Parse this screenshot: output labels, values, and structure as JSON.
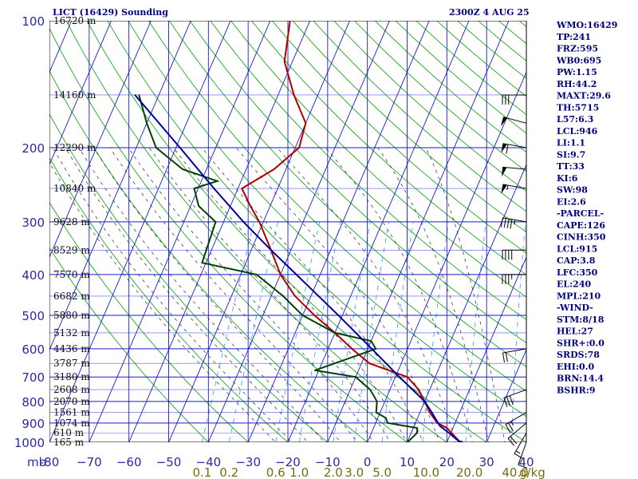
{
  "header": {
    "station": "LICT (16429) Sounding",
    "time": "2300Z  4 AUG 25"
  },
  "chart_data": {
    "type": "line",
    "subtype": "skew-T log-P sounding",
    "pressure_axis": {
      "label": "mb",
      "range": [
        1000,
        100
      ],
      "scale": "log",
      "ticks": [
        100,
        200,
        300,
        400,
        500,
        600,
        700,
        800,
        900,
        1000
      ]
    },
    "temperature_axis": {
      "range": [
        -80,
        40
      ],
      "ticks": [
        -80,
        -70,
        -60,
        -50,
        -40,
        -30,
        -20,
        -10,
        0,
        10,
        20,
        30,
        40
      ],
      "tick_labels": [
        "-80",
        "−70",
        "−60",
        "−50",
        "−40",
        "−30",
        "−20",
        "−10",
        "0",
        "10",
        "20",
        "30",
        "40"
      ]
    },
    "mixing_ratio_labels": [
      "0.1",
      "0.2",
      "0.6",
      "1.0",
      "2.0",
      "3.0",
      "5.0",
      "10.0",
      "20.0",
      "40.0"
    ],
    "mixing_ratio_unit": "g/kg",
    "height_labels": [
      {
        "p": 100,
        "text": "16720 m"
      },
      {
        "p": 150,
        "text": "14160 m"
      },
      {
        "p": 200,
        "text": "12290 m"
      },
      {
        "p": 250,
        "text": "10840 m"
      },
      {
        "p": 300,
        "text": "9628 m"
      },
      {
        "p": 350,
        "text": "8529 m"
      },
      {
        "p": 400,
        "text": "7570 m"
      },
      {
        "p": 450,
        "text": "6682 m"
      },
      {
        "p": 500,
        "text": "5880 m"
      },
      {
        "p": 550,
        "text": "5132 m"
      },
      {
        "p": 600,
        "text": "4436 m"
      },
      {
        "p": 650,
        "text": "3787 m"
      },
      {
        "p": 700,
        "text": "3180 m"
      },
      {
        "p": 750,
        "text": "2608 m"
      },
      {
        "p": 800,
        "text": "2070 m"
      },
      {
        "p": 850,
        "text": "1561 m"
      },
      {
        "p": 900,
        "text": "1074 m"
      },
      {
        "p": 950,
        "text": "610 m"
      },
      {
        "p": 1000,
        "text": "165 m"
      }
    ],
    "series": [
      {
        "name": "Temperature",
        "color": "#b00000",
        "points": [
          [
            1004,
            23.6
          ],
          [
            925,
            18.5
          ],
          [
            900,
            15.5
          ],
          [
            850,
            12.5
          ],
          [
            800,
            10
          ],
          [
            750,
            7.2
          ],
          [
            700,
            3
          ],
          [
            650,
            -8
          ],
          [
            600,
            -14
          ],
          [
            550,
            -20
          ],
          [
            500,
            -27
          ],
          [
            450,
            -34
          ],
          [
            400,
            -40
          ],
          [
            350,
            -45
          ],
          [
            300,
            -51
          ],
          [
            275,
            -55
          ],
          [
            250,
            -59
          ],
          [
            225,
            -53
          ],
          [
            200,
            -49
          ],
          [
            175,
            -50
          ],
          [
            150,
            -56
          ],
          [
            125,
            -62
          ],
          [
            100,
            -65
          ]
        ]
      },
      {
        "name": "Dewpoint",
        "color": "#004000",
        "points": [
          [
            1004,
            10
          ],
          [
            950,
            11.5
          ],
          [
            925,
            11
          ],
          [
            900,
            3
          ],
          [
            875,
            2
          ],
          [
            850,
            -1
          ],
          [
            800,
            -2
          ],
          [
            750,
            -5
          ],
          [
            700,
            -10
          ],
          [
            675,
            -21
          ],
          [
            600,
            -8
          ],
          [
            575,
            -10
          ],
          [
            550,
            -20
          ],
          [
            500,
            -30
          ],
          [
            450,
            -37
          ],
          [
            400,
            -46
          ],
          [
            375,
            -61
          ],
          [
            300,
            -62
          ],
          [
            275,
            -68
          ],
          [
            250,
            -71
          ],
          [
            240,
            -66
          ],
          [
            225,
            -76
          ],
          [
            200,
            -85
          ],
          [
            175,
            -90
          ],
          [
            150,
            -95
          ]
        ]
      },
      {
        "name": "Parcel",
        "color": "#0000a0",
        "points": [
          [
            1004,
            23.6
          ],
          [
            950,
            19.5
          ],
          [
            915,
            16.5
          ],
          [
            850,
            13
          ],
          [
            800,
            10
          ],
          [
            700,
            1
          ],
          [
            600,
            -9
          ],
          [
            500,
            -21
          ],
          [
            400,
            -36
          ],
          [
            350,
            -45
          ],
          [
            300,
            -55
          ],
          [
            250,
            -66
          ],
          [
            200,
            -79
          ],
          [
            150,
            -96
          ]
        ]
      }
    ],
    "wind_barbs": [
      {
        "p": 1000,
        "dir": 200,
        "kt": 10
      },
      {
        "p": 950,
        "dir": 210,
        "kt": 15
      },
      {
        "p": 900,
        "dir": 230,
        "kt": 20
      },
      {
        "p": 850,
        "dir": 240,
        "kt": 25
      },
      {
        "p": 750,
        "dir": 250,
        "kt": 30
      },
      {
        "p": 600,
        "dir": 260,
        "kt": 20
      },
      {
        "p": 400,
        "dir": 270,
        "kt": 35
      },
      {
        "p": 350,
        "dir": 270,
        "kt": 40
      },
      {
        "p": 300,
        "dir": 280,
        "kt": 45
      },
      {
        "p": 250,
        "dir": 280,
        "kt": 55
      },
      {
        "p": 225,
        "dir": 275,
        "kt": 50
      },
      {
        "p": 200,
        "dir": 280,
        "kt": 60
      },
      {
        "p": 175,
        "dir": 285,
        "kt": 50
      },
      {
        "p": 150,
        "dir": 270,
        "kt": 30
      }
    ]
  },
  "indices": [
    "WMO:16429",
    "TP:241",
    "FRZ:595",
    "WB0:695",
    "PW:1.15",
    "RH:44.2",
    "MAXT:29.6",
    "TH:5715",
    "L57:6.3",
    "LCL:946",
    "LI:1.1",
    "SI:9.7",
    "TT:33",
    "KI:6",
    "SW:98",
    "EI:2.6",
    "-PARCEL-",
    "CAPE:126",
    "CINH:350",
    "LCL:915",
    "CAP:3.8",
    "LFC:350",
    "EL:240",
    "MPL:210",
    "-WIND-",
    "STM:8/18",
    "HEL:27",
    "SHR+:0.0",
    "SRDS:78",
    "EHI:0.0",
    "BRN:14.4",
    "BSHR:9"
  ],
  "colors": {
    "isobar": "#1a1acc",
    "isotherm": "#1a1acc",
    "dry_adiabat": "#00a000",
    "moist_adiabat": "#000000",
    "mixing_ratio": "#3399ff",
    "text": "#000080"
  }
}
